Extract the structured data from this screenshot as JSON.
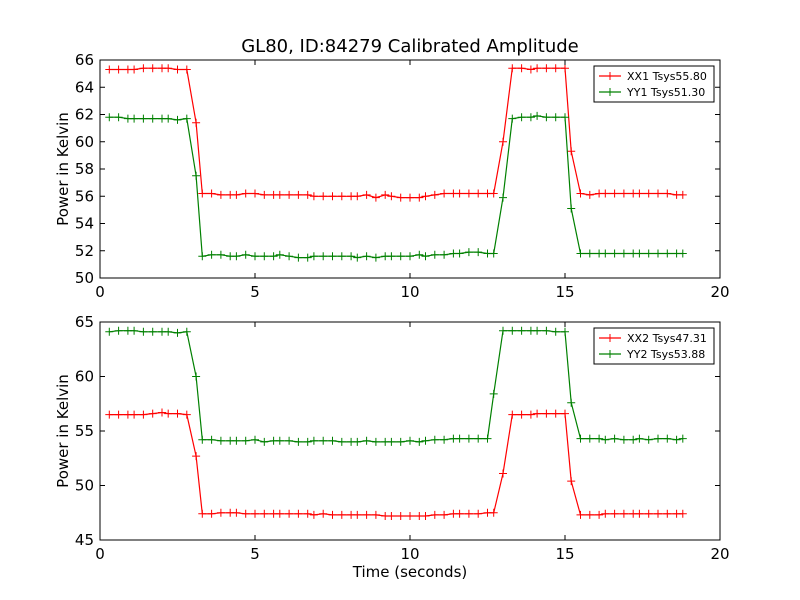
{
  "page": {
    "title": "GL80, ID:84279 Calibrated Amplitude"
  },
  "chart_data": [
    {
      "type": "line",
      "title": "GL80, ID:84279 Calibrated Amplitude",
      "xlabel": "",
      "ylabel": "Power in Kelvin",
      "xlim": [
        0,
        20
      ],
      "ylim": [
        50,
        66
      ],
      "xticks": [
        "0",
        "5",
        "10",
        "15",
        "20"
      ],
      "yticks": [
        "50",
        "52",
        "54",
        "56",
        "58",
        "60",
        "62",
        "64",
        "66"
      ],
      "grid": false,
      "legend_position": "top-right",
      "x": [
        0.3,
        0.6,
        0.9,
        1.1,
        1.4,
        1.7,
        2.0,
        2.2,
        2.5,
        2.8,
        3.1,
        3.3,
        3.6,
        3.9,
        4.2,
        4.4,
        4.7,
        5.0,
        5.3,
        5.6,
        5.8,
        6.1,
        6.4,
        6.7,
        6.9,
        7.2,
        7.5,
        7.8,
        8.1,
        8.3,
        8.6,
        8.9,
        9.2,
        9.4,
        9.7,
        10.0,
        10.3,
        10.5,
        10.8,
        11.1,
        11.4,
        11.6,
        11.9,
        12.2,
        12.5,
        12.7,
        13.0,
        13.3,
        13.6,
        13.9,
        14.1,
        14.4,
        14.7,
        15.0,
        15.2,
        15.5,
        15.8,
        16.1,
        16.3,
        16.6,
        16.9,
        17.2,
        17.4,
        17.7,
        18.0,
        18.3,
        18.6,
        18.8
      ],
      "series": [
        {
          "name": "XX1 Tsys55.80",
          "color": "#ff0000",
          "values": [
            65.3,
            65.3,
            65.3,
            65.3,
            65.4,
            65.4,
            65.4,
            65.4,
            65.3,
            65.3,
            61.4,
            56.2,
            56.2,
            56.1,
            56.1,
            56.1,
            56.2,
            56.2,
            56.1,
            56.1,
            56.1,
            56.1,
            56.1,
            56.1,
            56.0,
            56.0,
            56.0,
            56.0,
            56.0,
            56.0,
            56.1,
            55.9,
            56.1,
            56.0,
            55.9,
            55.9,
            55.9,
            56.0,
            56.1,
            56.2,
            56.2,
            56.2,
            56.2,
            56.2,
            56.2,
            56.2,
            60.0,
            65.4,
            65.4,
            65.3,
            65.4,
            65.4,
            65.4,
            65.4,
            59.3,
            56.2,
            56.1,
            56.2,
            56.2,
            56.2,
            56.2,
            56.2,
            56.2,
            56.2,
            56.2,
            56.2,
            56.1,
            56.1
          ]
        },
        {
          "name": "YY1 Tsys51.30",
          "color": "#008000",
          "values": [
            61.8,
            61.8,
            61.7,
            61.7,
            61.7,
            61.7,
            61.7,
            61.7,
            61.6,
            61.7,
            57.5,
            51.6,
            51.7,
            51.7,
            51.6,
            51.6,
            51.7,
            51.6,
            51.6,
            51.6,
            51.7,
            51.6,
            51.5,
            51.5,
            51.6,
            51.6,
            51.6,
            51.6,
            51.6,
            51.5,
            51.6,
            51.5,
            51.6,
            51.6,
            51.6,
            51.6,
            51.7,
            51.6,
            51.7,
            51.7,
            51.8,
            51.8,
            51.9,
            51.9,
            51.8,
            51.8,
            55.9,
            61.7,
            61.8,
            61.8,
            61.9,
            61.8,
            61.8,
            61.8,
            55.1,
            51.8,
            51.8,
            51.8,
            51.8,
            51.8,
            51.8,
            51.8,
            51.8,
            51.8,
            51.8,
            51.8,
            51.8,
            51.8
          ]
        }
      ]
    },
    {
      "type": "line",
      "title": "",
      "xlabel": "Time (seconds)",
      "ylabel": "Power in Kelvin",
      "xlim": [
        0,
        20
      ],
      "ylim": [
        45,
        65
      ],
      "xticks": [
        "0",
        "5",
        "10",
        "15",
        "20"
      ],
      "yticks": [
        "45",
        "50",
        "55",
        "60",
        "65"
      ],
      "grid": false,
      "legend_position": "top-right",
      "x": [
        0.3,
        0.6,
        0.9,
        1.1,
        1.4,
        1.7,
        2.0,
        2.2,
        2.5,
        2.8,
        3.1,
        3.3,
        3.6,
        3.9,
        4.2,
        4.4,
        4.7,
        5.0,
        5.3,
        5.6,
        5.8,
        6.1,
        6.4,
        6.7,
        6.9,
        7.2,
        7.5,
        7.8,
        8.1,
        8.3,
        8.6,
        8.9,
        9.2,
        9.4,
        9.7,
        10.0,
        10.3,
        10.5,
        10.8,
        11.1,
        11.4,
        11.6,
        11.9,
        12.2,
        12.5,
        12.7,
        13.0,
        13.3,
        13.6,
        13.9,
        14.1,
        14.4,
        14.7,
        15.0,
        15.2,
        15.5,
        15.8,
        16.1,
        16.3,
        16.6,
        16.9,
        17.2,
        17.4,
        17.7,
        18.0,
        18.3,
        18.6,
        18.8
      ],
      "series": [
        {
          "name": "XX2 Tsys47.31",
          "color": "#ff0000",
          "values": [
            56.5,
            56.5,
            56.5,
            56.5,
            56.5,
            56.6,
            56.7,
            56.6,
            56.6,
            56.5,
            52.7,
            47.4,
            47.4,
            47.5,
            47.5,
            47.5,
            47.4,
            47.4,
            47.4,
            47.4,
            47.4,
            47.4,
            47.4,
            47.4,
            47.3,
            47.4,
            47.3,
            47.3,
            47.3,
            47.3,
            47.3,
            47.3,
            47.2,
            47.2,
            47.2,
            47.2,
            47.2,
            47.2,
            47.3,
            47.3,
            47.4,
            47.4,
            47.4,
            47.4,
            47.5,
            47.5,
            51.1,
            56.5,
            56.5,
            56.5,
            56.6,
            56.6,
            56.6,
            56.6,
            50.4,
            47.3,
            47.3,
            47.3,
            47.4,
            47.4,
            47.4,
            47.4,
            47.4,
            47.4,
            47.4,
            47.4,
            47.4,
            47.4
          ]
        },
        {
          "name": "YY2 Tsys53.88",
          "color": "#008000",
          "values": [
            64.1,
            64.2,
            64.2,
            64.2,
            64.1,
            64.1,
            64.1,
            64.1,
            64.0,
            64.1,
            60.0,
            54.2,
            54.2,
            54.1,
            54.1,
            54.1,
            54.1,
            54.2,
            54.0,
            54.1,
            54.1,
            54.1,
            54.0,
            54.0,
            54.1,
            54.1,
            54.1,
            54.0,
            54.0,
            54.0,
            54.1,
            54.0,
            54.0,
            54.0,
            54.0,
            54.1,
            54.0,
            54.1,
            54.2,
            54.2,
            54.3,
            54.3,
            54.3,
            54.3,
            54.3,
            58.4,
            64.2,
            64.2,
            64.2,
            64.2,
            64.2,
            64.2,
            64.1,
            64.1,
            57.6,
            54.3,
            54.3,
            54.3,
            54.2,
            54.3,
            54.2,
            54.2,
            54.3,
            54.2,
            54.3,
            54.3,
            54.2,
            54.3
          ]
        }
      ]
    }
  ]
}
